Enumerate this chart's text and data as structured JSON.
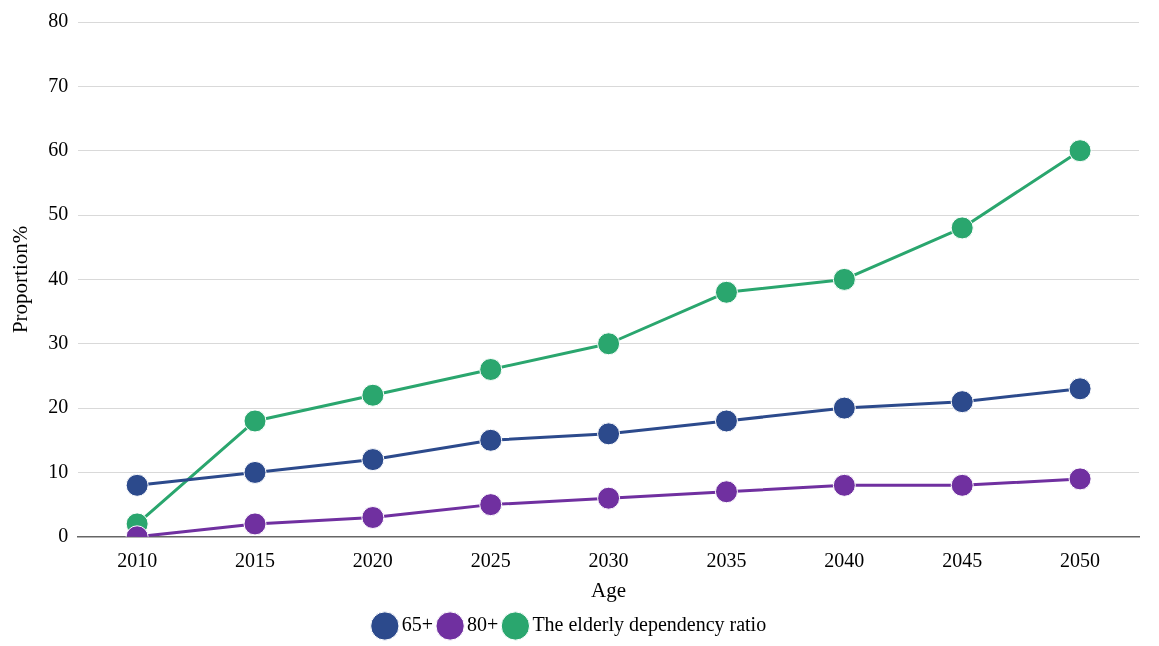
{
  "chart_data": {
    "type": "line",
    "xlabel": "Age",
    "ylabel": "Proportion%",
    "categories": [
      "2010",
      "2015",
      "2020",
      "2025",
      "2030",
      "2035",
      "2040",
      "2045",
      "2050"
    ],
    "series": [
      {
        "name": "65+",
        "color": "#2c4a8c",
        "values": [
          8,
          10,
          12,
          15,
          16,
          18,
          20,
          21,
          23
        ]
      },
      {
        "name": "80+",
        "color": "#7030a0",
        "values": [
          0,
          2,
          3,
          5,
          6,
          7,
          8,
          8,
          9
        ]
      },
      {
        "name": "The elderly dependency ratio",
        "color": "#2aa66e",
        "values": [
          2,
          18,
          22,
          26,
          30,
          38,
          40,
          48,
          60
        ]
      }
    ],
    "ylim": [
      0,
      80
    ],
    "yticks": [
      0,
      10,
      20,
      30,
      40,
      50,
      60,
      70,
      80
    ],
    "grid": "y",
    "legend": "bottom",
    "marker": "circle",
    "line_style": "solid"
  }
}
